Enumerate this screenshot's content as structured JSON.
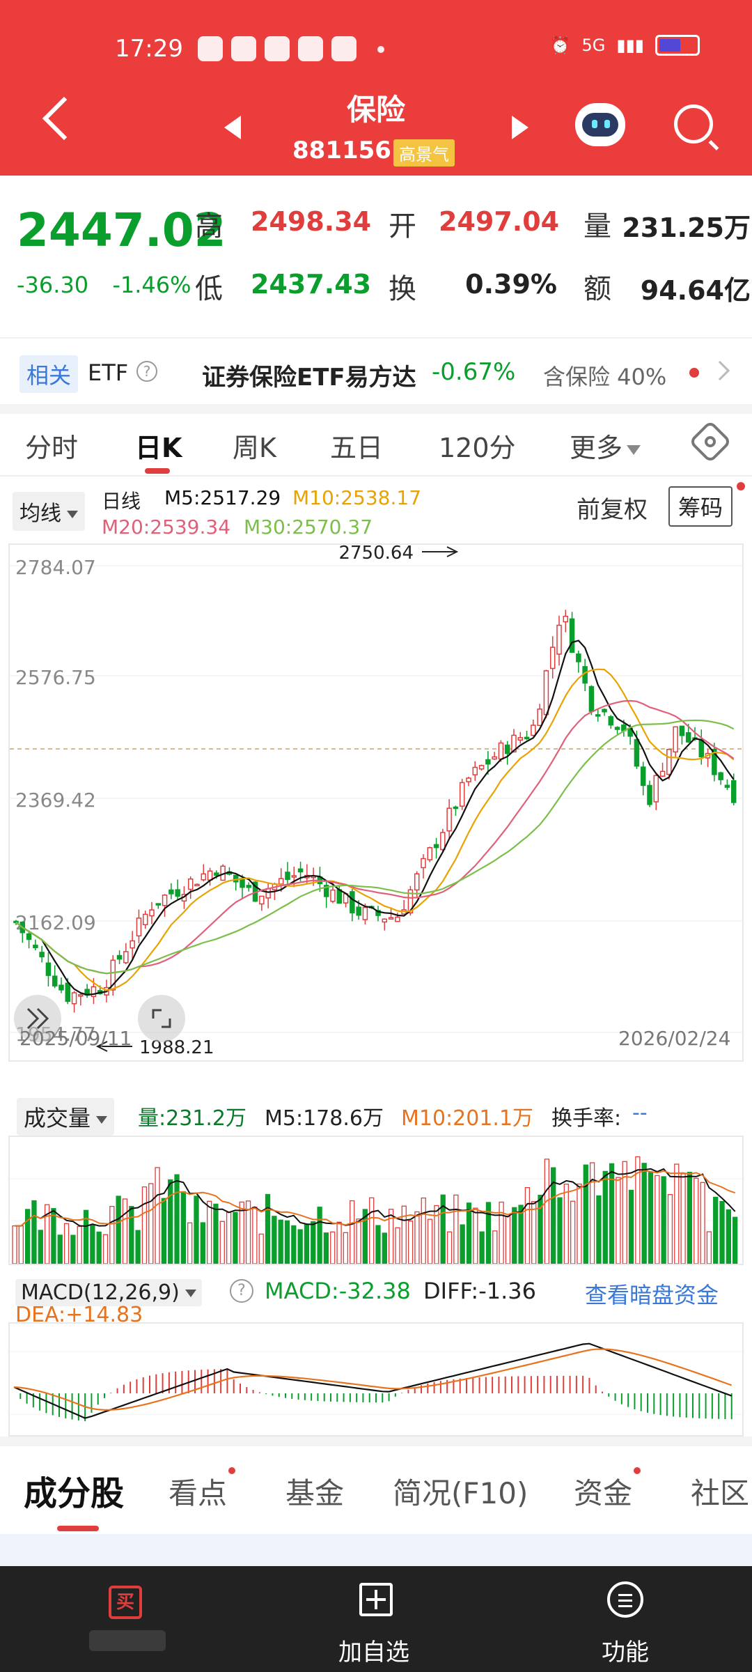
{
  "status_bar": {
    "time": "17:29",
    "network": "5G"
  },
  "header": {
    "title": "保险",
    "code": "881156",
    "badge": "高景气"
  },
  "quote": {
    "price": "2447.02",
    "change": "-36.30",
    "change_pct": "-1.46%",
    "high_label": "高",
    "high": "2498.34",
    "open_label": "开",
    "open": "2497.04",
    "volume_label": "量",
    "volume": "231.25万",
    "low_label": "低",
    "low": "2437.43",
    "turnover_label": "换",
    "turnover": "0.39%",
    "amount_label": "额",
    "amount": "94.64亿"
  },
  "etf": {
    "tag": "相关",
    "label": "ETF",
    "help": "?",
    "name": "证券保险ETF易方达",
    "change_pct": "-0.67%",
    "contains": "含保险 40%"
  },
  "chart_tabs": [
    {
      "label": "分时"
    },
    {
      "label": "日K"
    },
    {
      "label": "周K"
    },
    {
      "label": "五日"
    },
    {
      "label": "120分"
    },
    {
      "label": "更多"
    }
  ],
  "ma": {
    "selector": "均线",
    "period": "日线",
    "m5": "M5:2517.29",
    "m10": "M10:2538.17",
    "m20": "M20:2539.34",
    "m30": "M30:2570.37",
    "adjust": "前复权",
    "chips": "筹码"
  },
  "kline": {
    "y_labels": [
      "2784.07",
      "2576.75",
      "2369.42",
      "2162.09",
      "1954.77"
    ],
    "high_marker": "2750.64",
    "low_marker": "1988.21",
    "start_date": "2025/09/11",
    "end_date": "2026/02/24"
  },
  "volume": {
    "selector": "成交量",
    "vol": "量:231.2万",
    "m5": "M5:178.6万",
    "m10": "M10:201.1万",
    "turnover": "换手率:",
    "turnover_val": "--"
  },
  "macd": {
    "selector": "MACD(12,26,9)",
    "help": "?",
    "macd": "MACD:-32.38",
    "diff": "DIFF:-1.36",
    "dea": "DEA:+14.83",
    "link": "查看暗盘资金"
  },
  "bottom_tabs": [
    {
      "label": "成分股"
    },
    {
      "label": "看点"
    },
    {
      "label": "基金"
    },
    {
      "label": "简况(F10)"
    },
    {
      "label": "资金"
    },
    {
      "label": "社区"
    }
  ],
  "footer": {
    "buy_icon": "买",
    "add_label": "加自选",
    "func_label": "功能"
  },
  "colors": {
    "header": "#ec3d3d",
    "up": "#e03d3d",
    "down": "#0a9e2d",
    "m5": "#111111",
    "m10": "#e8a300",
    "m20": "#e0607a",
    "m30": "#7bbf4a"
  }
}
